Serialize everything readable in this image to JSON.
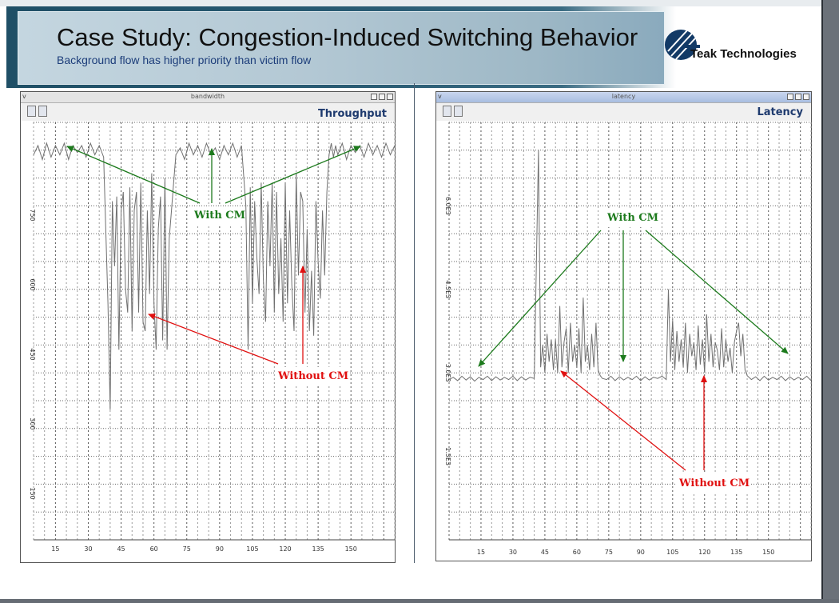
{
  "slide": {
    "title": "Case Study: Congestion-Induced Switching Behavior",
    "subtitle": "Background flow has higher priority than victim flow",
    "logo_text": "Teak Technologies"
  },
  "colors": {
    "green": "#1c7a1c",
    "red": "#e01010",
    "title_blue": "#1e3a6e",
    "line": "#707070"
  },
  "chart_data": [
    {
      "type": "line",
      "window_title": "bandwidth",
      "title": "Throughput",
      "xlabel": "",
      "ylabel": "",
      "xlim": [
        5,
        170
      ],
      "ylim": [
        50,
        950
      ],
      "x_ticks": [
        15,
        30,
        45,
        60,
        75,
        90,
        105,
        120,
        135,
        150
      ],
      "x_tick_labels": [
        "15",
        "30",
        "45",
        "60",
        "75",
        "90",
        "105",
        "120",
        "135",
        "150"
      ],
      "y_ticks": [
        150,
        300,
        450,
        600,
        750
      ],
      "y_tick_labels": [
        "150",
        "300",
        "450",
        "600",
        "750"
      ],
      "series": [
        {
          "name": "throughput",
          "x": [
            5,
            7,
            9,
            11,
            13,
            15,
            17,
            19,
            21,
            23,
            25,
            27,
            29,
            31,
            33,
            35,
            37,
            39,
            40,
            41,
            42,
            43,
            44,
            45,
            46,
            47,
            48,
            49,
            50,
            51,
            52,
            53,
            54,
            55,
            56,
            57,
            58,
            59,
            60,
            61,
            62,
            63,
            64,
            65,
            66,
            67,
            68,
            69,
            70,
            72,
            74,
            76,
            78,
            80,
            82,
            84,
            86,
            88,
            90,
            92,
            94,
            96,
            98,
            100,
            102,
            103,
            104,
            105,
            106,
            107,
            108,
            109,
            110,
            111,
            112,
            113,
            114,
            115,
            116,
            117,
            118,
            119,
            120,
            121,
            122,
            123,
            124,
            125,
            126,
            127,
            128,
            129,
            130,
            131,
            132,
            133,
            134,
            135,
            136,
            137,
            138,
            139,
            140,
            141,
            142,
            143,
            144,
            146,
            148,
            150,
            152,
            154,
            156,
            158,
            160,
            162,
            164,
            166,
            168,
            170
          ],
          "values": [
            880,
            900,
            870,
            905,
            875,
            900,
            880,
            905,
            870,
            900,
            885,
            900,
            875,
            905,
            880,
            900,
            875,
            560,
            330,
            780,
            640,
            790,
            460,
            760,
            800,
            590,
            540,
            810,
            500,
            760,
            800,
            540,
            820,
            520,
            500,
            760,
            580,
            840,
            560,
            460,
            720,
            790,
            480,
            830,
            460,
            700,
            760,
            820,
            880,
            895,
            870,
            905,
            880,
            900,
            875,
            905,
            880,
            895,
            870,
            900,
            880,
            905,
            875,
            900,
            770,
            460,
            810,
            560,
            780,
            660,
            580,
            820,
            610,
            520,
            780,
            640,
            820,
            540,
            800,
            580,
            700,
            520,
            820,
            560,
            760,
            600,
            500,
            840,
            620,
            800,
            780,
            540,
            720,
            500,
            630,
            490,
            780,
            650,
            570,
            760,
            620,
            800,
            880,
            905,
            875,
            900,
            880,
            905,
            870,
            900,
            885,
            900,
            875,
            905,
            880,
            900,
            875,
            905,
            880,
            900
          ]
        }
      ],
      "annotations": [
        {
          "text": "With CM",
          "color": "green"
        },
        {
          "text": "Without CM",
          "color": "red"
        }
      ]
    },
    {
      "type": "line",
      "window_title": "latency",
      "title": "Latency",
      "xlabel": "",
      "ylabel": "",
      "xlim": [
        0,
        170
      ],
      "ylim": [
        0,
        7.5
      ],
      "x_ticks": [
        15,
        30,
        45,
        60,
        75,
        90,
        105,
        120,
        135,
        150
      ],
      "x_tick_labels": [
        "15",
        "30",
        "45",
        "60",
        "75",
        "90",
        "105",
        "120",
        "135",
        "150"
      ],
      "y_ticks": [
        1.5,
        3.0,
        4.5,
        6.0
      ],
      "y_tick_labels": [
        "1.5E3",
        "3.0E3",
        "4.5E3",
        "6.0E3"
      ],
      "series": [
        {
          "name": "latency",
          "x": [
            0,
            2,
            4,
            6,
            8,
            10,
            12,
            14,
            16,
            18,
            20,
            22,
            24,
            26,
            28,
            30,
            32,
            34,
            36,
            38,
            40,
            42,
            43,
            44,
            45,
            46,
            47,
            48,
            49,
            50,
            51,
            52,
            53,
            54,
            55,
            56,
            57,
            58,
            59,
            60,
            61,
            62,
            63,
            64,
            65,
            66,
            67,
            68,
            69,
            70,
            71,
            72,
            74,
            76,
            78,
            80,
            82,
            84,
            86,
            88,
            90,
            92,
            94,
            96,
            98,
            100,
            102,
            103,
            104,
            105,
            106,
            107,
            108,
            109,
            110,
            111,
            112,
            113,
            114,
            115,
            116,
            117,
            118,
            119,
            120,
            121,
            122,
            123,
            124,
            125,
            126,
            127,
            128,
            129,
            130,
            131,
            132,
            133,
            134,
            135,
            136,
            137,
            138,
            139,
            140,
            142,
            144,
            146,
            148,
            150,
            152,
            154,
            156,
            158,
            160,
            162,
            164,
            166,
            168,
            170
          ],
          "values": [
            2.88,
            2.92,
            2.86,
            2.94,
            2.87,
            2.93,
            2.85,
            2.92,
            2.88,
            2.94,
            2.86,
            2.93,
            2.87,
            2.92,
            2.88,
            2.94,
            2.86,
            2.93,
            2.87,
            2.92,
            2.9,
            7.0,
            3.1,
            3.5,
            3.0,
            3.7,
            3.2,
            3.6,
            3.05,
            3.6,
            3.0,
            4.2,
            3.1,
            3.55,
            3.8,
            3.0,
            3.9,
            3.2,
            3.5,
            3.1,
            3.8,
            3.0,
            4.35,
            3.2,
            3.5,
            3.05,
            3.7,
            3.1,
            3.9,
            3.05,
            2.95,
            2.9,
            2.88,
            2.94,
            2.86,
            2.93,
            2.87,
            2.92,
            2.88,
            2.94,
            2.86,
            2.93,
            2.87,
            2.92,
            2.9,
            2.94,
            2.88,
            4.5,
            3.2,
            3.95,
            3.05,
            3.75,
            3.2,
            3.6,
            3.1,
            3.9,
            3.0,
            3.7,
            3.3,
            3.55,
            3.05,
            3.85,
            3.15,
            3.6,
            3.0,
            4.05,
            3.2,
            3.7,
            3.1,
            3.55,
            3.4,
            3.05,
            3.8,
            3.1,
            3.6,
            3.2,
            3.45,
            3.0,
            3.55,
            3.75,
            3.9,
            3.3,
            3.7,
            3.05,
            2.95,
            2.88,
            2.93,
            2.86,
            2.94,
            2.87,
            2.92,
            2.88,
            2.94,
            2.86,
            2.93,
            2.87,
            2.92,
            2.88,
            2.94,
            2.86
          ]
        }
      ],
      "annotations": [
        {
          "text": "With CM",
          "color": "green"
        },
        {
          "text": "Without CM",
          "color": "red"
        }
      ]
    }
  ]
}
